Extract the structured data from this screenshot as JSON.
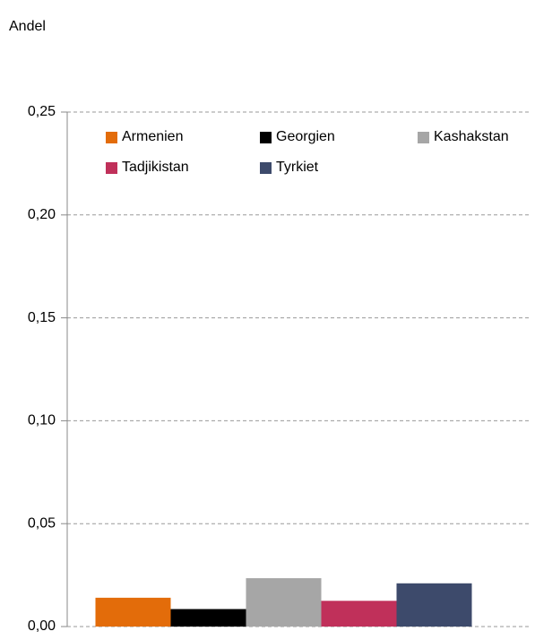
{
  "chart_data": {
    "type": "bar",
    "y_label": "Andel",
    "categories": [
      null
    ],
    "series": [
      {
        "name": "Armenien",
        "color": "#e36c0a",
        "values": [
          0.014
        ]
      },
      {
        "name": "Georgien",
        "color": "#000000",
        "values": [
          0.0085
        ]
      },
      {
        "name": "Kashakstan",
        "color": "#a6a6a6",
        "values": [
          0.0235
        ]
      },
      {
        "name": "Tadjikistan",
        "color": "#c0305a",
        "values": [
          0.0125
        ]
      },
      {
        "name": "Tyrkiet",
        "color": "#3d4a6b",
        "values": [
          0.021
        ]
      }
    ],
    "ylim": [
      0,
      0.25
    ],
    "yticks": [
      {
        "value": 0,
        "label": "0,00"
      },
      {
        "value": 0.05,
        "label": "0,05"
      },
      {
        "value": 0.1,
        "label": "0,10"
      },
      {
        "value": 0.15,
        "label": "0,15"
      },
      {
        "value": 0.2,
        "label": "0,20"
      },
      {
        "value": 0.25,
        "label": "0,25"
      }
    ],
    "grid": true
  }
}
